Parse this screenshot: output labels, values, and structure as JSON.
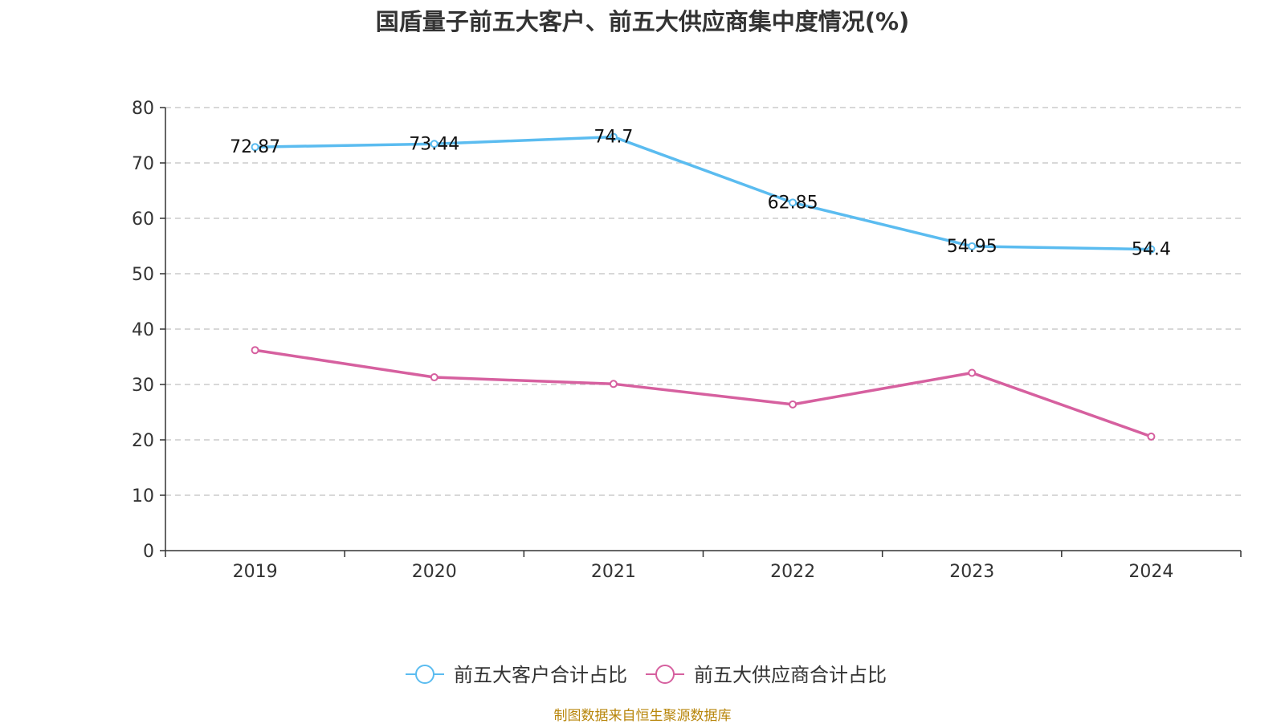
{
  "chart_data": {
    "type": "line",
    "title": "国盾量子前五大客户、前五大供应商集中度情况(%)",
    "categories": [
      "2019",
      "2020",
      "2021",
      "2022",
      "2023",
      "2024"
    ],
    "ylim": [
      0,
      80
    ],
    "yticks": [
      "0",
      "10",
      "20",
      "30",
      "40",
      "50",
      "60",
      "70",
      "80"
    ],
    "grid": true,
    "legend_position": "bottom",
    "series": [
      {
        "name": "前五大客户合计占比",
        "color": "#5bbcf0",
        "values": [
          72.87,
          73.44,
          74.7,
          62.85,
          54.95,
          54.4
        ],
        "labels": [
          "72.87",
          "73.44",
          "74.7",
          "62.85",
          "54.95",
          "54.4"
        ],
        "show_labels": true
      },
      {
        "name": "前五大供应商合计占比",
        "color": "#d6609f",
        "values": [
          36.2,
          31.3,
          30.1,
          26.4,
          32.1,
          20.6
        ],
        "show_labels": false
      }
    ]
  },
  "source_note": "制图数据来自恒生聚源数据库"
}
